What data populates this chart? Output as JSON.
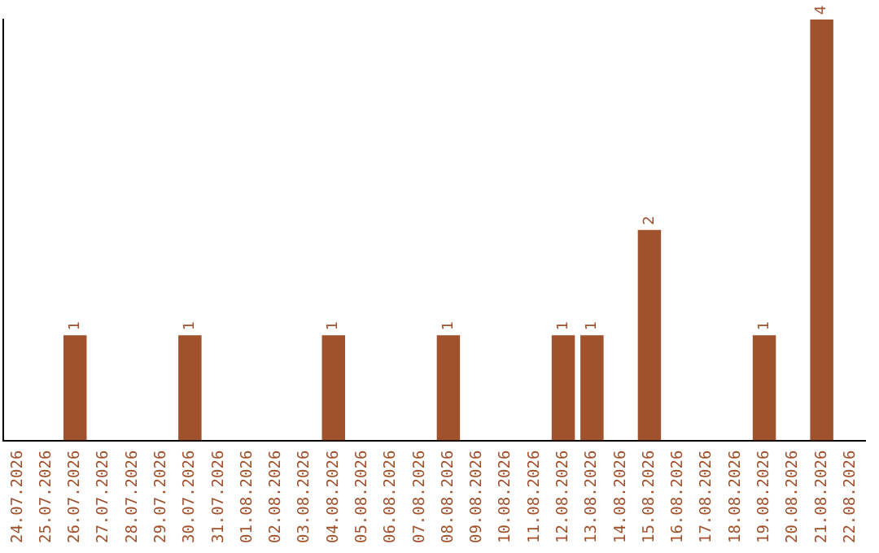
{
  "chart_data": {
    "type": "bar",
    "categories": [
      "24.07.2026",
      "25.07.2026",
      "26.07.2026",
      "27.07.2026",
      "28.07.2026",
      "29.07.2026",
      "30.07.2026",
      "31.07.2026",
      "01.08.2026",
      "02.08.2026",
      "03.08.2026",
      "04.08.2026",
      "05.08.2026",
      "06.08.2026",
      "07.08.2026",
      "08.08.2026",
      "09.08.2026",
      "10.08.2026",
      "11.08.2026",
      "12.08.2026",
      "13.08.2026",
      "14.08.2026",
      "15.08.2026",
      "16.08.2026",
      "17.08.2026",
      "18.08.2026",
      "19.08.2026",
      "20.08.2026",
      "21.08.2026",
      "22.08.2026"
    ],
    "values": [
      0,
      0,
      1,
      0,
      0,
      0,
      1,
      0,
      0,
      0,
      0,
      1,
      0,
      0,
      0,
      1,
      0,
      0,
      0,
      1,
      1,
      0,
      2,
      0,
      0,
      0,
      1,
      0,
      4,
      0
    ],
    "value_labels": [
      null,
      null,
      "1",
      null,
      null,
      null,
      "1",
      null,
      null,
      null,
      null,
      "1",
      null,
      null,
      null,
      "1",
      null,
      null,
      null,
      "1",
      "1",
      null,
      "2",
      null,
      null,
      null,
      "1",
      null,
      "4",
      null
    ],
    "color": "#a0522d",
    "grid": false,
    "legend": false
  }
}
